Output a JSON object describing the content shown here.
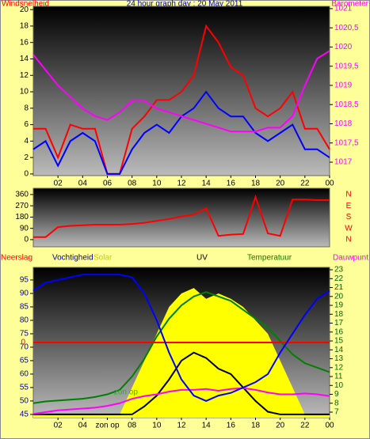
{
  "chart_data": [
    {
      "type": "line",
      "title": "24 hour graph day : 20 May 2011",
      "x": [
        0,
        1,
        2,
        3,
        4,
        5,
        6,
        7,
        8,
        9,
        10,
        11,
        12,
        13,
        14,
        15,
        16,
        17,
        18,
        19,
        20,
        21,
        22,
        23,
        24
      ],
      "xlim": [
        0,
        24
      ],
      "xticks": [
        {
          "value": 2,
          "label": "02"
        },
        {
          "value": 4,
          "label": "04"
        },
        {
          "value": 6,
          "label": "06"
        },
        {
          "value": 8,
          "label": "08"
        },
        10,
        12,
        14,
        16,
        18,
        20,
        22,
        {
          "value": 24,
          "label": "00"
        }
      ],
      "ylim": [
        -0.2,
        20.4
      ],
      "yticks": [
        0,
        2,
        4,
        6,
        8,
        10,
        12,
        14,
        16,
        18,
        20
      ],
      "y2lim": [
        1016.65,
        1021.06
      ],
      "y2ticks": [
        1017,
        {
          "value": 1017.5,
          "label": "1017,5"
        },
        1018,
        {
          "value": 1018.5,
          "label": "1018,5"
        },
        1019,
        {
          "value": 1019.5,
          "label": "1019,5"
        },
        1020,
        {
          "value": 1020.5,
          "label": "1020,5"
        },
        1021
      ],
      "series": [
        {
          "name": "Windsnelheid",
          "color": "#ff0000",
          "values": [
            5.5,
            5.5,
            2,
            6,
            5.5,
            5.5,
            0,
            0,
            5.5,
            7,
            9,
            9,
            10,
            12,
            18,
            16,
            13,
            12,
            8,
            7,
            8,
            10,
            5.5,
            5.5,
            3
          ]
        },
        {
          "color": "#0000ff",
          "values": [
            3,
            4,
            1,
            4,
            5,
            4,
            0,
            0,
            3,
            5,
            6,
            5,
            7,
            8,
            10,
            8,
            7,
            7,
            5,
            4,
            5,
            6,
            3,
            3,
            2
          ]
        },
        {
          "name": "Barometer",
          "color": "#ff00ff",
          "axis": "y2",
          "values": [
            1019.8,
            1019.4,
            1019.0,
            1018.7,
            1018.4,
            1018.2,
            1018.1,
            1018.3,
            1018.6,
            1018.6,
            1018.4,
            1018.3,
            1018.2,
            1018.1,
            1018.0,
            1017.9,
            1017.8,
            1017.8,
            1017.8,
            1017.9,
            1017.9,
            1018.2,
            1019.0,
            1019.7,
            1019.9
          ]
        }
      ]
    },
    {
      "type": "line",
      "x": [
        0,
        1,
        2,
        3,
        4,
        5,
        6,
        7,
        8,
        9,
        10,
        11,
        12,
        13,
        14,
        15,
        16,
        17,
        18,
        19,
        20,
        21,
        22,
        23,
        24
      ],
      "xlim": [
        0,
        24
      ],
      "ylim": [
        -57,
        410
      ],
      "yticks": [
        0,
        90,
        180,
        270,
        360
      ],
      "direction_labels": [
        "N",
        "W",
        "S",
        "E",
        "N"
      ],
      "series": [
        {
          "color": "#ff0000",
          "values": [
            20,
            20,
            100,
            110,
            115,
            120,
            120,
            120,
            125,
            135,
            150,
            165,
            185,
            200,
            250,
            30,
            40,
            45,
            340,
            50,
            30,
            320,
            320,
            315,
            315
          ]
        }
      ]
    },
    {
      "type": "line",
      "x": [
        0,
        1,
        2,
        3,
        4,
        5,
        6,
        7,
        8,
        9,
        10,
        11,
        12,
        13,
        14,
        15,
        16,
        17,
        18,
        19,
        20,
        21,
        22,
        23,
        24
      ],
      "xlim": [
        0,
        24
      ],
      "xticks": [
        {
          "value": 2,
          "label": "02"
        },
        {
          "value": 4,
          "label": "04"
        },
        {
          "value": 6,
          "label": "zon op"
        },
        {
          "value": 8,
          "label": "08"
        },
        10,
        12,
        14,
        16,
        18,
        20,
        22,
        {
          "value": 24,
          "label": "00"
        }
      ],
      "ylim": [
        43.8,
        99.7
      ],
      "yticks": [
        45,
        50,
        55,
        60,
        65,
        70,
        75,
        80,
        85,
        90,
        95
      ],
      "y2lim": [
        6.38,
        23.27
      ],
      "y2ticks": [
        7,
        8,
        9,
        10,
        11,
        12,
        13,
        14,
        15,
        16,
        17,
        18,
        19,
        20,
        21,
        22,
        23
      ],
      "y3lim": [
        -1,
        1
      ],
      "y3ticks": [
        0
      ],
      "labels": {
        "rain": "Neerslag",
        "solar": "Solar",
        "uv": "UV"
      },
      "series": [
        {
          "name": "UV",
          "color": "#ffff00",
          "kind": "area",
          "values": [
            45,
            45,
            45,
            45,
            45,
            45,
            45,
            45,
            55,
            65,
            75,
            85,
            90,
            92,
            88,
            90,
            88,
            85,
            80,
            75,
            65,
            55,
            45,
            45,
            45
          ]
        },
        {
          "name": "Solar",
          "color": "#000000",
          "values": [
            45,
            45,
            45,
            45,
            45,
            45,
            45,
            45,
            45,
            48,
            52,
            58,
            65,
            68,
            66,
            62,
            60,
            55,
            50,
            46,
            45,
            45,
            45,
            45,
            45
          ]
        },
        {
          "name": "Vochtigheid",
          "color": "#0000ff",
          "values": [
            91,
            94,
            95,
            96,
            97,
            97,
            97,
            97,
            96,
            90,
            80,
            68,
            58,
            52,
            50,
            52,
            53,
            55,
            57,
            60,
            68,
            75,
            82,
            88,
            91
          ]
        },
        {
          "name": "Temperatuur",
          "color": "#008000",
          "axis": "y2",
          "values": [
            8,
            8.2,
            8.3,
            8.4,
            8.5,
            8.7,
            9,
            9.5,
            11,
            13,
            15.5,
            17.5,
            19,
            20,
            20.5,
            20,
            19.5,
            18.5,
            17.5,
            16.5,
            15,
            13.5,
            12.5,
            12,
            11.5
          ]
        },
        {
          "name": "Dauwpunt",
          "color": "#ff00ff",
          "axis": "y2",
          "values": [
            6.8,
            7,
            7.2,
            7.3,
            7.4,
            7.5,
            7.7,
            8,
            8.5,
            8.8,
            9,
            9.3,
            9.5,
            9.5,
            9.6,
            9.4,
            9.6,
            9.7,
            9.5,
            9.2,
            9,
            9,
            9.1,
            9,
            8.8
          ]
        },
        {
          "name": "Neerslag",
          "color": "#ff0000",
          "axis": "y3",
          "values": [
            0,
            0,
            0,
            0,
            0,
            0,
            0,
            0,
            0,
            0,
            0,
            0,
            0,
            0,
            0,
            0,
            0,
            0,
            0,
            0,
            0,
            0,
            0,
            0,
            0
          ]
        }
      ],
      "annotations": [
        {
          "text": "zon op",
          "x": 7.5
        }
      ]
    }
  ]
}
